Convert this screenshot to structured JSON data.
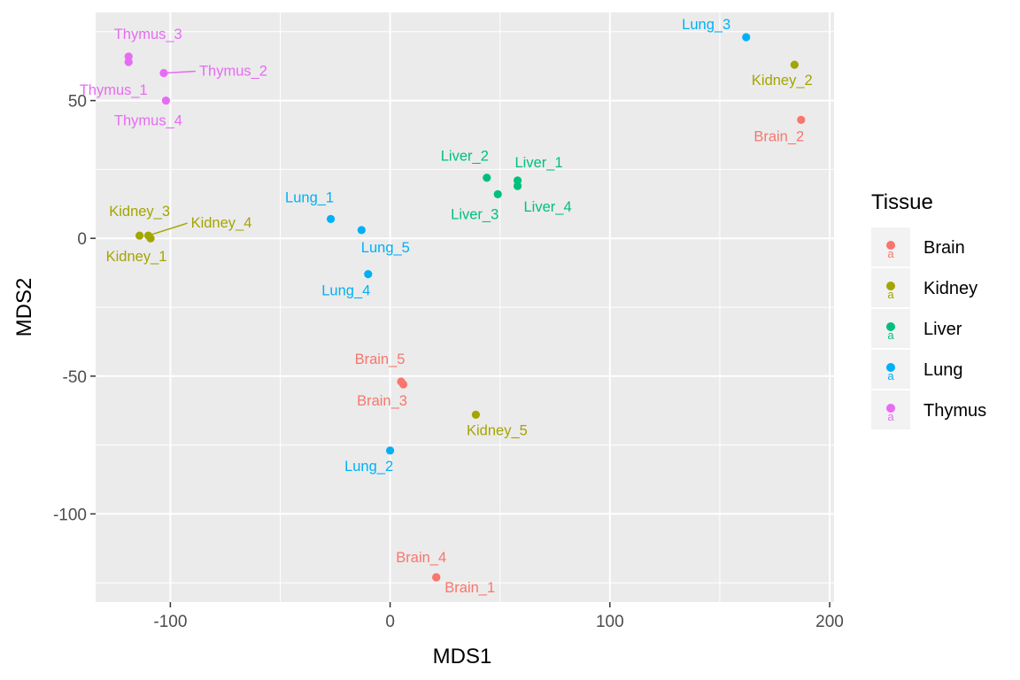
{
  "chart_data": {
    "type": "scatter",
    "title": "",
    "xlabel": "MDS1",
    "ylabel": "MDS2",
    "xlim": [
      -134,
      202
    ],
    "ylim": [
      -132,
      82
    ],
    "xticks": [
      -100,
      0,
      100,
      200
    ],
    "yticks": [
      -100,
      -50,
      0,
      50
    ],
    "grid": true,
    "legend": {
      "title": "Tissue",
      "position": "right",
      "entries": [
        "Brain",
        "Kidney",
        "Liver",
        "Lung",
        "Thymus"
      ]
    },
    "colors": {
      "Brain": "#F8766D",
      "Kidney": "#A3A500",
      "Liver": "#00BF7D",
      "Lung": "#00B0F6",
      "Thymus": "#E76BF3"
    },
    "points": [
      {
        "label": "Brain_1",
        "tissue": "Brain",
        "x": 21,
        "y": -123
      },
      {
        "label": "Brain_2",
        "tissue": "Brain",
        "x": 187,
        "y": 43
      },
      {
        "label": "Brain_3",
        "tissue": "Brain",
        "x": 6,
        "y": -53
      },
      {
        "label": "Brain_4",
        "tissue": "Brain",
        "x": 21,
        "y": -123
      },
      {
        "label": "Brain_5",
        "tissue": "Brain",
        "x": 5,
        "y": -52
      },
      {
        "label": "Kidney_1",
        "tissue": "Kidney",
        "x": -109,
        "y": 0
      },
      {
        "label": "Kidney_2",
        "tissue": "Kidney",
        "x": 184,
        "y": 63
      },
      {
        "label": "Kidney_3",
        "tissue": "Kidney",
        "x": -114,
        "y": 1
      },
      {
        "label": "Kidney_4",
        "tissue": "Kidney",
        "x": -110,
        "y": 1
      },
      {
        "label": "Kidney_5",
        "tissue": "Kidney",
        "x": 39,
        "y": -64
      },
      {
        "label": "Liver_1",
        "tissue": "Liver",
        "x": 58,
        "y": 21
      },
      {
        "label": "Liver_2",
        "tissue": "Liver",
        "x": 44,
        "y": 22
      },
      {
        "label": "Liver_3",
        "tissue": "Liver",
        "x": 49,
        "y": 16
      },
      {
        "label": "Liver_4",
        "tissue": "Liver",
        "x": 58,
        "y": 19
      },
      {
        "label": "Lung_1",
        "tissue": "Lung",
        "x": -27,
        "y": 7
      },
      {
        "label": "Lung_2",
        "tissue": "Lung",
        "x": 0,
        "y": -77
      },
      {
        "label": "Lung_3",
        "tissue": "Lung",
        "x": 162,
        "y": 73
      },
      {
        "label": "Lung_4",
        "tissue": "Lung",
        "x": -10,
        "y": -13
      },
      {
        "label": "Lung_5",
        "tissue": "Lung",
        "x": -13,
        "y": 3
      },
      {
        "label": "Thymus_1",
        "tissue": "Thymus",
        "x": -119,
        "y": 64
      },
      {
        "label": "Thymus_2",
        "tissue": "Thymus",
        "x": -103,
        "y": 60
      },
      {
        "label": "Thymus_3",
        "tissue": "Thymus",
        "x": -119,
        "y": 66
      },
      {
        "label": "Thymus_4",
        "tissue": "Thymus",
        "x": -102,
        "y": 50
      }
    ]
  }
}
